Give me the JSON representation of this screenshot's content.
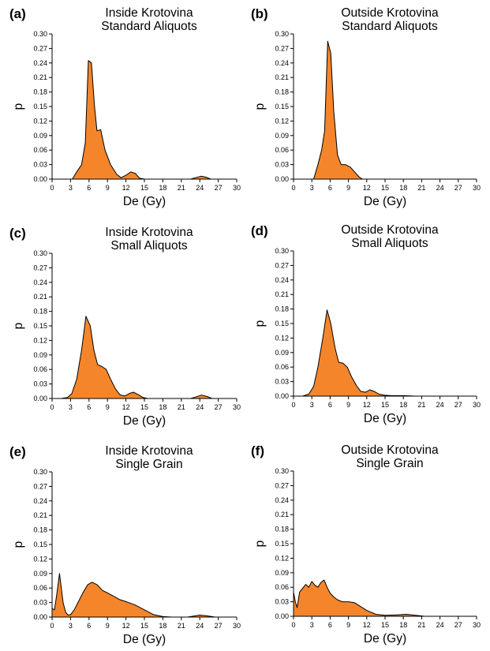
{
  "chart_data": [
    {
      "type": "area",
      "panel": "(a)",
      "title": [
        "Inside Krotovina",
        "Standard Aliquots"
      ],
      "xlabel": "De (Gy)",
      "ylabel": "p",
      "xlim": [
        0,
        30
      ],
      "ylim": [
        0,
        0.3
      ],
      "x_ticks": [
        0,
        3,
        6,
        9,
        12,
        15,
        18,
        21,
        24,
        27,
        30
      ],
      "y_ticks": [
        0.0,
        0.03,
        0.06,
        0.09,
        0.12,
        0.15,
        0.18,
        0.21,
        0.24,
        0.27,
        0.3
      ],
      "x_tick_labels": [
        "0",
        "3",
        "6",
        "9",
        "12",
        "15",
        "18",
        "21",
        "24",
        "27",
        "30"
      ],
      "y_tick_labels": [
        "0.00",
        "0.03",
        "0.06",
        "0.09",
        "0.12",
        "0.15",
        "0.18",
        "0.21",
        "0.24",
        "0.27",
        "0.30"
      ],
      "color": "#f5852b",
      "x": [
        3.3,
        4.0,
        4.8,
        5.4,
        5.9,
        6.4,
        6.9,
        7.3,
        7.9,
        8.6,
        9.5,
        10.5,
        11.2,
        12.0,
        12.8,
        13.5,
        14.2,
        15.0,
        22.5,
        23.3,
        24.2,
        25.0,
        25.8
      ],
      "y": [
        0.0,
        0.015,
        0.03,
        0.075,
        0.245,
        0.24,
        0.15,
        0.1,
        0.102,
        0.06,
        0.03,
        0.01,
        0.003,
        0.008,
        0.015,
        0.012,
        0.002,
        0.0,
        0.0,
        0.003,
        0.006,
        0.004,
        0.0
      ]
    },
    {
      "type": "area",
      "panel": "(b)",
      "title": [
        "Outside Krotovina",
        "Standard Aliquots"
      ],
      "xlabel": "De (Gy)",
      "ylabel": "p",
      "xlim": [
        0,
        30
      ],
      "ylim": [
        0,
        0.3
      ],
      "x_ticks": [
        0,
        3,
        6,
        9,
        12,
        15,
        18,
        21,
        24,
        27,
        30
      ],
      "y_ticks": [
        0.0,
        0.03,
        0.06,
        0.09,
        0.12,
        0.15,
        0.18,
        0.21,
        0.24,
        0.27,
        0.3
      ],
      "x_tick_labels": [
        "0",
        "3",
        "6",
        "9",
        "12",
        "15",
        "18",
        "21",
        "24",
        "27",
        "30"
      ],
      "y_tick_labels": [
        "0.00",
        "0.03",
        "0.06",
        "0.09",
        "0.12",
        "0.15",
        "0.18",
        "0.21",
        "0.24",
        "0.27",
        "0.30"
      ],
      "color": "#f5852b",
      "x": [
        3.3,
        4.0,
        4.6,
        5.1,
        5.6,
        6.1,
        6.6,
        7.2,
        7.8,
        8.5,
        9.3,
        10.0,
        10.8,
        11.3
      ],
      "y": [
        0.0,
        0.03,
        0.06,
        0.1,
        0.285,
        0.26,
        0.14,
        0.05,
        0.03,
        0.03,
        0.025,
        0.015,
        0.004,
        0.0
      ]
    },
    {
      "type": "area",
      "panel": "(c)",
      "title": [
        "Inside Krotovina",
        "Small Aliquots"
      ],
      "xlabel": "De (Gy)",
      "ylabel": "p",
      "xlim": [
        0,
        30
      ],
      "ylim": [
        0,
        0.3
      ],
      "x_ticks": [
        0,
        3,
        6,
        9,
        12,
        15,
        18,
        21,
        24,
        27,
        30
      ],
      "y_ticks": [
        0.0,
        0.03,
        0.06,
        0.09,
        0.12,
        0.15,
        0.18,
        0.21,
        0.24,
        0.27,
        0.3
      ],
      "x_tick_labels": [
        "0",
        "3",
        "6",
        "9",
        "12",
        "15",
        "18",
        "21",
        "24",
        "27",
        "30"
      ],
      "y_tick_labels": [
        "0.00",
        "0.03",
        "0.06",
        "0.09",
        "0.12",
        "0.15",
        "0.18",
        "0.21",
        "0.24",
        "0.27",
        "0.30"
      ],
      "color": "#f5852b",
      "x": [
        1.5,
        2.5,
        3.2,
        4.0,
        4.8,
        5.5,
        6.2,
        6.8,
        7.4,
        8.1,
        8.8,
        9.5,
        10.3,
        11.0,
        11.8,
        12.5,
        13.2,
        14.0,
        14.8,
        15.5,
        22.5,
        23.3,
        24.3,
        25.2,
        26.0
      ],
      "y": [
        0.0,
        0.002,
        0.01,
        0.04,
        0.1,
        0.17,
        0.15,
        0.1,
        0.07,
        0.066,
        0.06,
        0.04,
        0.02,
        0.008,
        0.005,
        0.01,
        0.013,
        0.008,
        0.002,
        0.0,
        0.0,
        0.003,
        0.007,
        0.004,
        0.0
      ]
    },
    {
      "type": "area",
      "panel": "(d)",
      "title": [
        "Outside Krotovina",
        "Small Aliquots"
      ],
      "xlabel": "De (Gy)",
      "ylabel": "p",
      "xlim": [
        0,
        30
      ],
      "ylim": [
        0,
        0.3
      ],
      "x_ticks": [
        0,
        3,
        6,
        9,
        12,
        15,
        18,
        21,
        24,
        27,
        30
      ],
      "y_ticks": [
        0.0,
        0.03,
        0.06,
        0.09,
        0.12,
        0.15,
        0.18,
        0.21,
        0.24,
        0.27,
        0.3
      ],
      "x_tick_labels": [
        "0",
        "3",
        "6",
        "9",
        "12",
        "15",
        "18",
        "21",
        "24",
        "27",
        "30"
      ],
      "y_tick_labels": [
        "0.00",
        "0.03",
        "0.06",
        "0.09",
        "0.12",
        "0.15",
        "0.18",
        "0.21",
        "0.24",
        "0.27",
        "0.30"
      ],
      "color": "#f5852b",
      "x": [
        1.5,
        2.5,
        3.3,
        4.0,
        4.8,
        5.5,
        6.1,
        6.8,
        7.4,
        8.1,
        8.8,
        9.5,
        10.3,
        11.0,
        11.8,
        12.5,
        13.2,
        14.0,
        14.8,
        16.0,
        18.0,
        20.0
      ],
      "y": [
        0.0,
        0.004,
        0.02,
        0.06,
        0.12,
        0.178,
        0.15,
        0.1,
        0.07,
        0.068,
        0.06,
        0.04,
        0.022,
        0.01,
        0.008,
        0.013,
        0.01,
        0.004,
        0.002,
        0.001,
        0.001,
        0.0
      ]
    },
    {
      "type": "area",
      "panel": "(e)",
      "title": [
        "Inside Krotovina",
        "Single Grain"
      ],
      "xlabel": "De (Gy)",
      "ylabel": "p",
      "xlim": [
        0,
        30
      ],
      "ylim": [
        0,
        0.3
      ],
      "x_ticks": [
        0,
        3,
        6,
        9,
        12,
        15,
        18,
        21,
        24,
        27,
        30
      ],
      "y_ticks": [
        0.0,
        0.03,
        0.06,
        0.09,
        0.12,
        0.15,
        0.18,
        0.21,
        0.24,
        0.27,
        0.3
      ],
      "x_tick_labels": [
        "0",
        "3",
        "6",
        "9",
        "12",
        "15",
        "18",
        "21",
        "24",
        "27",
        "30"
      ],
      "y_tick_labels": [
        "0.00",
        "0.03",
        "0.06",
        "0.09",
        "0.12",
        "0.15",
        "0.18",
        "0.21",
        "0.24",
        "0.27",
        "0.30"
      ],
      "color": "#f5852b",
      "x": [
        0.0,
        0.4,
        0.8,
        1.2,
        1.5,
        1.8,
        2.2,
        2.6,
        3.0,
        3.6,
        4.2,
        5.0,
        5.8,
        6.5,
        7.3,
        8.2,
        9.0,
        10.0,
        11.0,
        12.0,
        13.5,
        15.0,
        16.5,
        18.0,
        19.5,
        22.0,
        24.0,
        25.0,
        26.5
      ],
      "y": [
        0.018,
        0.015,
        0.05,
        0.09,
        0.06,
        0.03,
        0.01,
        0.004,
        0.005,
        0.015,
        0.03,
        0.05,
        0.067,
        0.072,
        0.067,
        0.055,
        0.05,
        0.043,
        0.036,
        0.032,
        0.025,
        0.015,
        0.005,
        0.001,
        0.0,
        0.0,
        0.004,
        0.003,
        0.0
      ]
    },
    {
      "type": "area",
      "panel": "(f)",
      "title": [
        "Outside Krotovina",
        "Single Grain"
      ],
      "xlabel": "De (Gy)",
      "ylabel": "p",
      "xlim": [
        0,
        30
      ],
      "ylim": [
        0,
        0.3
      ],
      "x_ticks": [
        0,
        3,
        6,
        9,
        12,
        15,
        18,
        21,
        24,
        27,
        30
      ],
      "y_ticks": [
        0.0,
        0.03,
        0.06,
        0.09,
        0.12,
        0.15,
        0.18,
        0.21,
        0.24,
        0.27,
        0.3
      ],
      "x_tick_labels": [
        "0",
        "3",
        "6",
        "9",
        "12",
        "15",
        "18",
        "21",
        "24",
        "27",
        "30"
      ],
      "y_tick_labels": [
        "0.00",
        "0.03",
        "0.06",
        "0.09",
        "0.12",
        "0.15",
        "0.18",
        "0.21",
        "0.24",
        "0.27",
        "0.30"
      ],
      "color": "#f5852b",
      "x": [
        0.0,
        0.3,
        0.6,
        1.0,
        1.5,
        2.0,
        2.5,
        3.0,
        3.5,
        4.0,
        4.5,
        5.0,
        5.5,
        6.0,
        6.6,
        7.2,
        8.0,
        9.0,
        10.0,
        11.0,
        12.0,
        13.5,
        15.0,
        17.0,
        18.5,
        20.0,
        21.5
      ],
      "y": [
        0.05,
        0.03,
        0.018,
        0.05,
        0.058,
        0.066,
        0.06,
        0.072,
        0.064,
        0.06,
        0.07,
        0.075,
        0.06,
        0.048,
        0.04,
        0.034,
        0.03,
        0.03,
        0.028,
        0.02,
        0.012,
        0.004,
        0.002,
        0.003,
        0.004,
        0.002,
        0.0
      ]
    }
  ]
}
